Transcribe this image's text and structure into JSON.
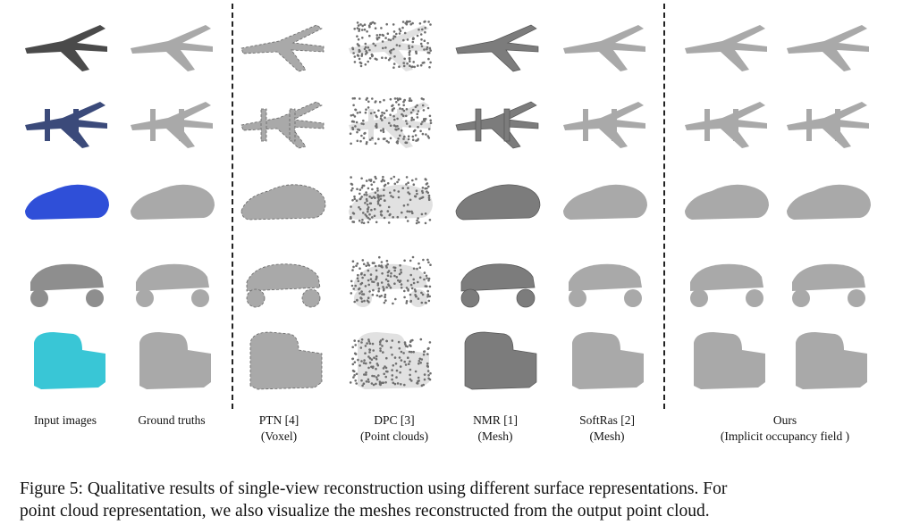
{
  "columns": [
    {
      "id": "input",
      "line1": "Input images",
      "line2": ""
    },
    {
      "id": "gt",
      "line1": "Ground truths",
      "line2": ""
    },
    {
      "id": "ptn",
      "line1": "PTN [4]",
      "line2": "(Voxel)"
    },
    {
      "id": "dpc",
      "line1": "DPC [3]",
      "line2": "(Point clouds)"
    },
    {
      "id": "nmr",
      "line1": "NMR [1]",
      "line2": "(Mesh)"
    },
    {
      "id": "softras",
      "line1": "SoftRas [2]",
      "line2": "(Mesh)"
    },
    {
      "id": "ours",
      "line1": "Ours",
      "line2": "(Implicit occupancy field )"
    }
  ],
  "rows": [
    "airplane",
    "twin-boom-airplane",
    "sports-car",
    "monster-truck",
    "semi-truck"
  ],
  "caption": {
    "line1": "Figure 5: Qualitative results of single-view reconstruction using different surface representations. For",
    "line2": "point cloud representation, we also visualize the meshes reconstructed from the output point cloud."
  },
  "colors": {
    "input_row1": "#4a4a4a",
    "input_row2": "#3b4a7a",
    "input_row3": "#2f4fd8",
    "input_row4": "#8e8e8e",
    "input_row5": "#39c6d6",
    "render_gray": "#a9a9a9",
    "render_dark": "#7c7c7c"
  }
}
